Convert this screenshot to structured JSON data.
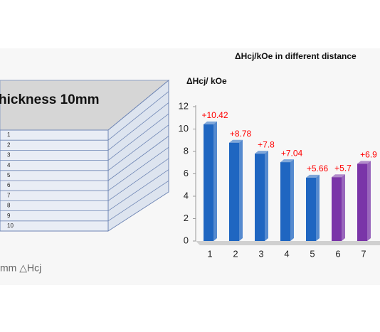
{
  "diagram": {
    "title": "hickness 10mm",
    "layers": [
      "1",
      "2",
      "3",
      "4",
      "5",
      "6",
      "7",
      "8",
      "9",
      "10"
    ],
    "caption": "mm △Hcj"
  },
  "chart_data": {
    "type": "bar3d",
    "title": "ΔHcj/kOe in different distance",
    "y_label": "ΔHcj/ kOe",
    "categories": [
      "1",
      "2",
      "3",
      "4",
      "5",
      "6",
      "7"
    ],
    "values": [
      10.42,
      8.78,
      7.8,
      7.04,
      5.66,
      5.7,
      6.9
    ],
    "value_labels": [
      "+10.42",
      "+8.78",
      "+7.8",
      "+7.04",
      "+5.66",
      "+5.7",
      "+6.9"
    ],
    "colors": [
      "#1f66c1",
      "#1f66c1",
      "#1f66c1",
      "#1f66c1",
      "#1f66c1",
      "#7a35a8",
      "#7a35a8"
    ],
    "ylim": [
      0,
      12
    ],
    "yticks": [
      0,
      2,
      4,
      6,
      8,
      10,
      12
    ]
  }
}
